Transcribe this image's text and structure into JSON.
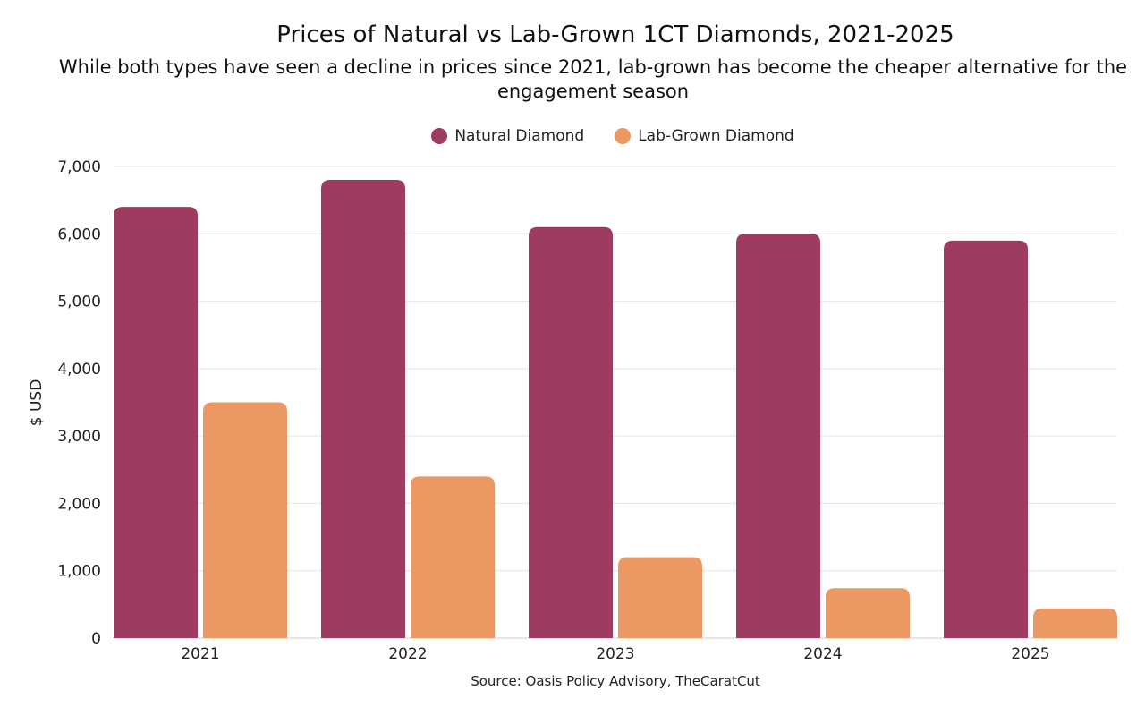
{
  "chart_data": {
    "type": "bar",
    "title": "Prices of Natural vs Lab-Grown 1CT Diamonds, 2021-2025",
    "subtitle": "While both types have seen a decline in prices since 2021, lab-grown has become the cheaper alternative for the engagement season",
    "categories": [
      "2021",
      "2022",
      "2023",
      "2024",
      "2025"
    ],
    "series": [
      {
        "name": "Natural Diamond",
        "color": "#9e3b61",
        "values": [
          6400,
          6800,
          6100,
          6000,
          5900
        ]
      },
      {
        "name": "Lab-Grown Diamond",
        "color": "#eb9863",
        "values": [
          3500,
          2400,
          1200,
          740,
          440
        ]
      }
    ],
    "xlabel": "",
    "ylabel": "$ USD",
    "ylim": [
      0,
      7000
    ],
    "yticks": [
      "0",
      "1,000",
      "2,000",
      "3,000",
      "4,000",
      "5,000",
      "6,000",
      "7,000"
    ],
    "grid": true,
    "legend": "top-center",
    "source": "Source: Oasis Policy Advisory, TheCaratCut"
  }
}
